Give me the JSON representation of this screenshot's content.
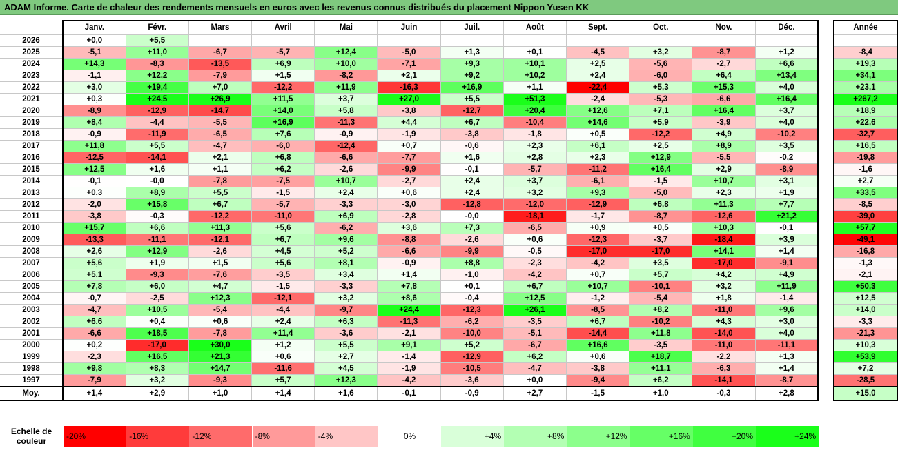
{
  "title": "ADAM Informe. Carte de chaleur des rendements mensuels en euros avec les revenus connus distribués du placement Nippon Yusen KK",
  "chart_data": {
    "type": "heatmap",
    "title": "ADAM Informe. Carte de chaleur des rendements mensuels en euros avec les revenus connus distribués du placement Nippon Yusen KK",
    "columns": [
      "Janv.",
      "Févr.",
      "Mars",
      "Avril",
      "Mai",
      "Juin",
      "Juil.",
      "Août",
      "Sept.",
      "Oct.",
      "Nov.",
      "Déc."
    ],
    "annual_header": "Année",
    "rows": [
      {
        "year": "2026",
        "values": [
          "+0,0",
          "+5,5",
          "",
          "",
          "",
          "",
          "",
          "",
          "",
          "",
          "",
          ""
        ],
        "annual": ""
      },
      {
        "year": "2025",
        "values": [
          "-5,1",
          "+11,0",
          "-6,7",
          "-5,7",
          "+12,4",
          "-5,0",
          "+1,3",
          "+0,1",
          "-4,5",
          "+3,2",
          "-8,7",
          "+1,2"
        ],
        "annual": "-8,4"
      },
      {
        "year": "2024",
        "values": [
          "+14,3",
          "-8,3",
          "-13,5",
          "+6,9",
          "+10,0",
          "-7,1",
          "+9,3",
          "+10,1",
          "+2,5",
          "-5,6",
          "-2,7",
          "+6,6"
        ],
        "annual": "+19,3"
      },
      {
        "year": "2023",
        "values": [
          "-1,1",
          "+12,2",
          "-7,9",
          "+1,5",
          "-8,2",
          "+2,1",
          "+9,2",
          "+10,2",
          "+2,4",
          "-6,0",
          "+6,4",
          "+13,4"
        ],
        "annual": "+34,1"
      },
      {
        "year": "2022",
        "values": [
          "+3,0",
          "+19,4",
          "+7,0",
          "-12,2",
          "+11,9",
          "-16,3",
          "+16,9",
          "+1,1",
          "-22,4",
          "+5,3",
          "+15,3",
          "+4,0"
        ],
        "annual": "+23,1"
      },
      {
        "year": "2021",
        "values": [
          "+0,3",
          "+24,5",
          "+26,9",
          "+11,5",
          "+3,7",
          "+27,0",
          "+5,5",
          "+51,3",
          "-2,4",
          "-5,3",
          "-6,6",
          "+16,4"
        ],
        "annual": "+267,2"
      },
      {
        "year": "2020",
        "values": [
          "-8,9",
          "-12,9",
          "-14,7",
          "+14,0",
          "+5,8",
          "-3,8",
          "-12,7",
          "+20,4",
          "+12,6",
          "+7,1",
          "+16,4",
          "+3,7"
        ],
        "annual": "+18,9"
      },
      {
        "year": "2019",
        "values": [
          "+8,4",
          "-4,4",
          "-5,5",
          "+16,9",
          "-11,3",
          "+4,4",
          "+6,7",
          "-10,4",
          "+14,6",
          "+5,9",
          "-3,9",
          "+4,0"
        ],
        "annual": "+22,6"
      },
      {
        "year": "2018",
        "values": [
          "-0,9",
          "-11,9",
          "-6,5",
          "+7,6",
          "-0,9",
          "-1,9",
          "-3,8",
          "-1,8",
          "+0,5",
          "-12,2",
          "+4,9",
          "-10,2"
        ],
        "annual": "-32,7"
      },
      {
        "year": "2017",
        "values": [
          "+11,8",
          "+5,5",
          "-4,7",
          "-6,0",
          "-12,4",
          "+0,7",
          "-0,6",
          "+2,3",
          "+6,1",
          "+2,5",
          "+8,9",
          "+3,5"
        ],
        "annual": "+16,5"
      },
      {
        "year": "2016",
        "values": [
          "-12,5",
          "-14,1",
          "+2,1",
          "+6,8",
          "-6,6",
          "-7,7",
          "+1,6",
          "+2,8",
          "+2,3",
          "+12,9",
          "-5,5",
          "-0,2"
        ],
        "annual": "-19,8"
      },
      {
        "year": "2015",
        "values": [
          "+12,5",
          "+1,6",
          "+1,1",
          "+6,2",
          "-2,6",
          "-9,9",
          "-0,1",
          "-5,7",
          "-11,2",
          "+16,4",
          "+2,9",
          "-8,9"
        ],
        "annual": "-1,6"
      },
      {
        "year": "2014",
        "values": [
          "-0,1",
          "-0,0",
          "-7,8",
          "-7,5",
          "+10,7",
          "-2,7",
          "+2,4",
          "+3,7",
          "-6,1",
          "-1,5",
          "+10,7",
          "+3,1"
        ],
        "annual": "+2,7"
      },
      {
        "year": "2013",
        "values": [
          "+0,3",
          "+8,9",
          "+5,5",
          "-1,5",
          "+2,4",
          "+0,6",
          "+2,4",
          "+3,2",
          "+9,3",
          "-5,0",
          "+2,3",
          "+1,9"
        ],
        "annual": "+33,5"
      },
      {
        "year": "2012",
        "values": [
          "-2,0",
          "+15,8",
          "+6,7",
          "-5,7",
          "-3,3",
          "-3,0",
          "-12,8",
          "-12,0",
          "-12,9",
          "+6,8",
          "+11,3",
          "+7,7"
        ],
        "annual": "-8,5"
      },
      {
        "year": "2011",
        "values": [
          "-3,8",
          "-0,3",
          "-12,2",
          "-11,0",
          "+6,9",
          "-2,8",
          "-0,0",
          "-18,1",
          "-1,7",
          "-8,7",
          "-12,6",
          "+21,2"
        ],
        "annual": "-39,0"
      },
      {
        "year": "2010",
        "values": [
          "+15,7",
          "+6,6",
          "+11,3",
          "+5,6",
          "-6,2",
          "+3,6",
          "+7,3",
          "-6,5",
          "+0,9",
          "+0,5",
          "+10,3",
          "-0,1"
        ],
        "annual": "+57,7"
      },
      {
        "year": "2009",
        "values": [
          "-13,3",
          "-11,1",
          "-12,1",
          "+6,7",
          "+9,6",
          "-8,8",
          "-2,6",
          "+0,6",
          "-12,3",
          "-3,7",
          "-18,4",
          "+3,9"
        ],
        "annual": "-49,1"
      },
      {
        "year": "2008",
        "values": [
          "+2,6",
          "+12,9",
          "-2,6",
          "+4,5",
          "+5,2",
          "-6,6",
          "-9,9",
          "-0,5",
          "-17,0",
          "-17,0",
          "+14,1",
          "+1,4"
        ],
        "annual": "-16,8"
      },
      {
        "year": "2007",
        "values": [
          "+5,6",
          "+1,9",
          "+1,5",
          "+5,6",
          "+8,1",
          "-0,9",
          "+8,8",
          "-2,3",
          "-4,2",
          "+3,5",
          "-17,0",
          "-9,1"
        ],
        "annual": "-1,3"
      },
      {
        "year": "2006",
        "values": [
          "+5,1",
          "-9,3",
          "-7,6",
          "-3,5",
          "+3,4",
          "+1,4",
          "-1,0",
          "-4,2",
          "+0,7",
          "+5,7",
          "+4,2",
          "+4,9"
        ],
        "annual": "-2,1"
      },
      {
        "year": "2005",
        "values": [
          "+7,8",
          "+6,0",
          "+4,7",
          "-1,5",
          "-3,3",
          "+7,8",
          "+0,1",
          "+6,7",
          "+10,7",
          "-10,1",
          "+3,2",
          "+11,9"
        ],
        "annual": "+50,3"
      },
      {
        "year": "2004",
        "values": [
          "-0,7",
          "-2,5",
          "+12,3",
          "-12,1",
          "+3,2",
          "+8,6",
          "-0,4",
          "+12,5",
          "-1,2",
          "-5,4",
          "+1,8",
          "-1,4"
        ],
        "annual": "+12,5"
      },
      {
        "year": "2003",
        "values": [
          "-4,7",
          "+10,5",
          "-5,4",
          "-4,4",
          "-9,7",
          "+24,4",
          "-12,3",
          "+26,1",
          "-8,5",
          "+8,2",
          "-11,0",
          "+9,6"
        ],
        "annual": "+14,0"
      },
      {
        "year": "2002",
        "values": [
          "+6,6",
          "+0,4",
          "+0,6",
          "+2,4",
          "+6,3",
          "-11,3",
          "-6,2",
          "-3,5",
          "+6,7",
          "-10,2",
          "+4,3",
          "+3,0"
        ],
        "annual": "-3,3"
      },
      {
        "year": "2001",
        "values": [
          "-6,6",
          "+18,5",
          "-7,8",
          "+11,4",
          "-3,6",
          "-2,1",
          "-10,0",
          "-5,1",
          "-14,4",
          "+11,8",
          "-14,0",
          "+4,0"
        ],
        "annual": "-21,3"
      },
      {
        "year": "2000",
        "values": [
          "+0,2",
          "-17,0",
          "+30,0",
          "+1,2",
          "+5,5",
          "+9,1",
          "+5,2",
          "-6,7",
          "+16,6",
          "-3,5",
          "-11,0",
          "-11,1"
        ],
        "annual": "+10,3"
      },
      {
        "year": "1999",
        "values": [
          "-2,3",
          "+16,5",
          "+21,3",
          "+0,6",
          "+2,7",
          "-1,4",
          "-12,9",
          "+6,2",
          "+0,6",
          "+18,7",
          "-2,2",
          "+1,3"
        ],
        "annual": "+53,9"
      },
      {
        "year": "1998",
        "values": [
          "+9,8",
          "+8,3",
          "+14,7",
          "-11,6",
          "+4,5",
          "-1,9",
          "-10,5",
          "-4,7",
          "-3,8",
          "+11,1",
          "-6,3",
          "+1,4"
        ],
        "annual": "+7,2"
      },
      {
        "year": "1997",
        "values": [
          "-7,9",
          "+3,2",
          "-9,3",
          "+5,7",
          "+12,3",
          "-4,2",
          "-3,6",
          "+0,0",
          "-9,4",
          "+6,2",
          "-14,1",
          "-8,7"
        ],
        "annual": "-28,5"
      }
    ],
    "average": {
      "label": "Moy.",
      "values": [
        "+1,4",
        "+2,9",
        "+1,0",
        "+1,4",
        "+1,6",
        "-0,1",
        "-0,9",
        "+2,7",
        "-1,5",
        "+1,0",
        "-0,3",
        "+2,8"
      ],
      "annual": "+15,0"
    },
    "color_scale": {
      "label": "Echelle de couleur",
      "stops": [
        {
          "label": "-20%",
          "value": -20,
          "color": "#ff0000"
        },
        {
          "label": "-16%",
          "value": -16,
          "color": "#ff3b3b"
        },
        {
          "label": "-12%",
          "value": -12,
          "color": "#ff6b6b"
        },
        {
          "label": "-8%",
          "value": -8,
          "color": "#ff9a9a"
        },
        {
          "label": "-4%",
          "value": -4,
          "color": "#ffc6c6"
        },
        {
          "label": "0%",
          "value": 0,
          "color": "#ffffff"
        },
        {
          "label": "+4%",
          "value": 4,
          "color": "#d9ffd9"
        },
        {
          "label": "+8%",
          "value": 8,
          "color": "#b3ffb3"
        },
        {
          "label": "+12%",
          "value": 12,
          "color": "#8cff8c"
        },
        {
          "label": "+16%",
          "value": 16,
          "color": "#66ff66"
        },
        {
          "label": "+20%",
          "value": 20,
          "color": "#40ff40"
        },
        {
          "label": "+24%",
          "value": 24,
          "color": "#1aff1a"
        }
      ]
    }
  }
}
